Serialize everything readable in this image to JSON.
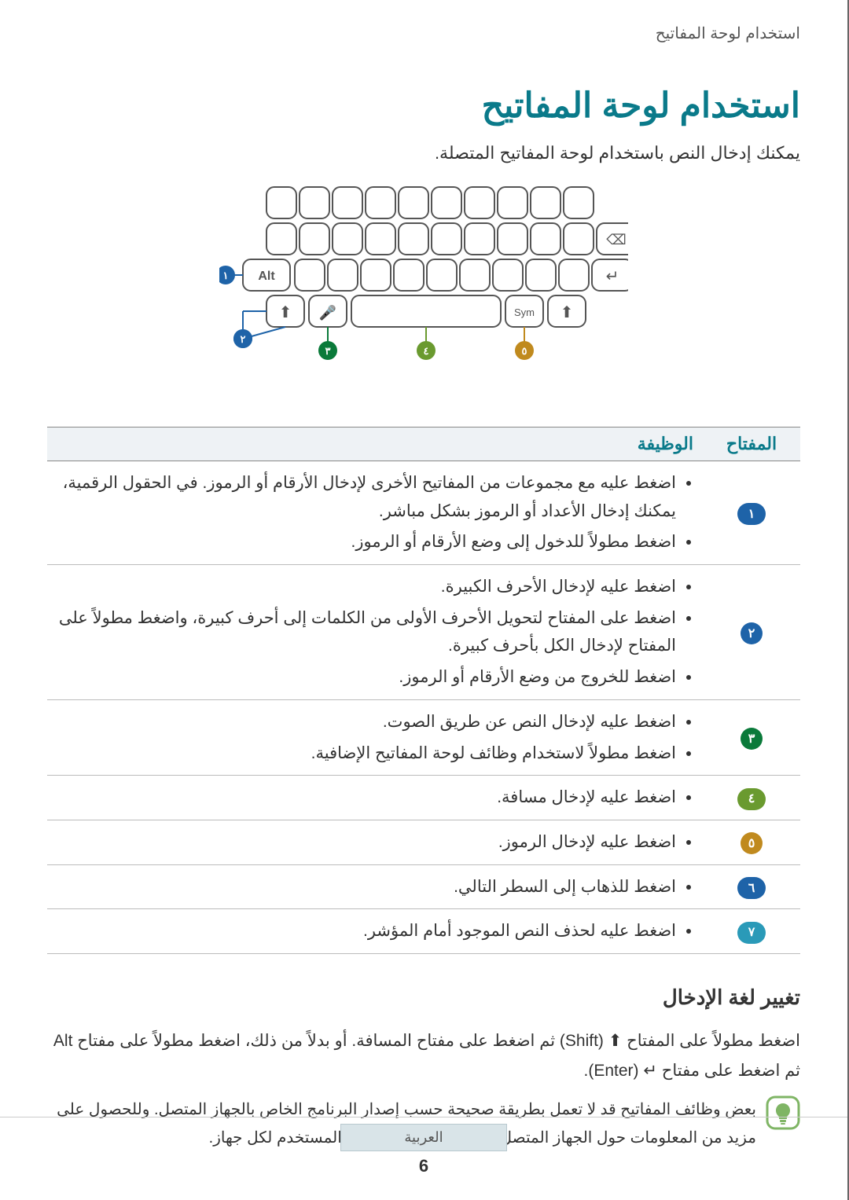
{
  "breadcrumb": "استخدام لوحة المفاتيح",
  "title": "استخدام لوحة المفاتيح",
  "intro": "يمكنك إدخال النص باستخدام لوحة المفاتيح المتصلة.",
  "table": {
    "header_key": "المفتاح",
    "header_fn": "الوظيفة",
    "rows": [
      {
        "badge_text": "١",
        "badge_color": "#1e63a8",
        "badge_shape": "pill",
        "items": [
          "اضغط عليه مع مجموعات من المفاتيح الأخرى لإدخال الأرقام أو الرموز. في الحقول الرقمية، يمكنك إدخال الأعداد أو الرموز بشكل مباشر.",
          "اضغط مطولاً للدخول إلى وضع الأرقام أو الرموز."
        ]
      },
      {
        "badge_text": "٢",
        "badge_color": "#1e63a8",
        "badge_shape": "circle",
        "items": [
          "اضغط عليه لإدخال الأحرف الكبيرة.",
          "اضغط على المفتاح لتحويل الأحرف الأولى من الكلمات إلى أحرف كبيرة، واضغط مطولاً على المفتاح لإدخال الكل بأحرف كبيرة.",
          "اضغط للخروج من وضع الأرقام أو الرموز."
        ]
      },
      {
        "badge_text": "٣",
        "badge_color": "#0a7a3a",
        "badge_shape": "circle",
        "items": [
          "اضغط عليه لإدخال النص عن طريق الصوت.",
          "اضغط مطولاً لاستخدام وظائف لوحة المفاتيح الإضافية."
        ]
      },
      {
        "badge_text": "٤",
        "badge_color": "#6a9a2f",
        "badge_shape": "pill",
        "items": [
          "اضغط عليه لإدخال مسافة."
        ]
      },
      {
        "badge_text": "٥",
        "badge_color": "#c08a1e",
        "badge_shape": "circle",
        "items": [
          "اضغط عليه لإدخال الرموز."
        ]
      },
      {
        "badge_text": "٦",
        "badge_color": "#1e63a8",
        "badge_shape": "pill",
        "items": [
          "اضغط للذهاب إلى السطر التالي."
        ]
      },
      {
        "badge_text": "٧",
        "badge_color": "#2a9ab8",
        "badge_shape": "pill",
        "items": [
          "اضغط عليه لحذف النص الموجود أمام المؤشر."
        ]
      }
    ]
  },
  "sub_title": "تغيير لغة الإدخال",
  "change_lang_para": "اضغط مطولاً على المفتاح ⬆ (Shift) ثم اضغط على مفتاح المسافة. أو بدلاً من ذلك، اضغط مطولاً على مفتاح Alt ثم اضغط على مفتاح ↵ (Enter).",
  "note_text": "بعض وظائف المفاتيح قد لا تعمل بطريقة صحيحة حسب إصدار البرنامج الخاص بالجهاز المتصل. وللحصول على مزيد من المعلومات حول الجهاز المتصل، يُرجى الرجوع إلى دليل المستخدم لكل جهاز.",
  "footer_lang": "العربية",
  "page_number": "6",
  "keyboard_svg": {
    "alt_label": "Alt",
    "sym_label": "Sym",
    "stroke": "#555555",
    "callouts": [
      {
        "num": "١",
        "color": "#1e63a8"
      },
      {
        "num": "٢",
        "color": "#1e63a8"
      },
      {
        "num": "٣",
        "color": "#0a7a3a"
      },
      {
        "num": "٤",
        "color": "#6a9a2f"
      },
      {
        "num": "٥",
        "color": "#c08a1e"
      },
      {
        "num": "٦",
        "color": "#1e63a8"
      },
      {
        "num": "٧",
        "color": "#2a9ab8"
      }
    ]
  }
}
